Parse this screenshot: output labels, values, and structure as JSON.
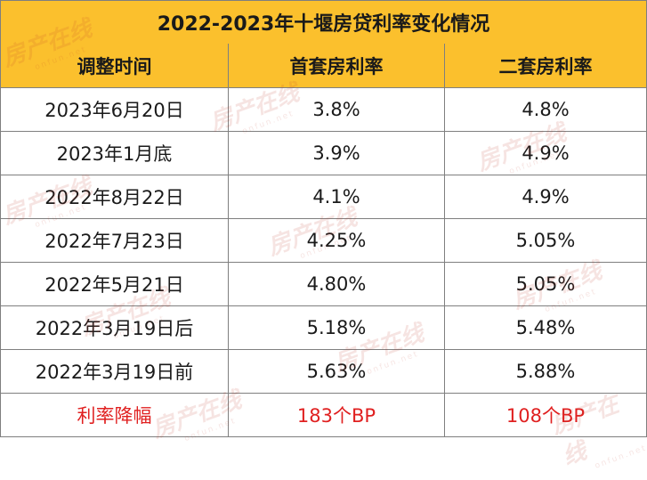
{
  "title": "2022-2023年十堰房贷利率变化情况",
  "headers": [
    "调整时间",
    "首套房利率",
    "二套房利率"
  ],
  "rows": [
    {
      "date": "2023年6月20日",
      "first": "3.8%",
      "second": "4.8%"
    },
    {
      "date": "2023年1月底",
      "first": "3.9%",
      "second": "4.9%"
    },
    {
      "date": "2022年8月22日",
      "first": "4.1%",
      "second": "4.9%"
    },
    {
      "date": "2022年7月23日",
      "first": "4.25%",
      "second": "5.05%"
    },
    {
      "date": "2022年5月21日",
      "first": "4.80%",
      "second": "5.05%"
    },
    {
      "date": "2022年3月19日后",
      "first": "5.18%",
      "second": "5.48%"
    },
    {
      "date": "2022年3月19日前",
      "first": "5.63%",
      "second": "5.88%"
    }
  ],
  "summary": {
    "label": "利率降幅",
    "first": "183个BP",
    "second": "108个BP"
  },
  "watermark": {
    "text": "房产在线",
    "domain": "onfun.net"
  },
  "colors": {
    "header_bg": "#fbc02d",
    "summary_text": "#e02020",
    "border": "#7f7f7f"
  }
}
